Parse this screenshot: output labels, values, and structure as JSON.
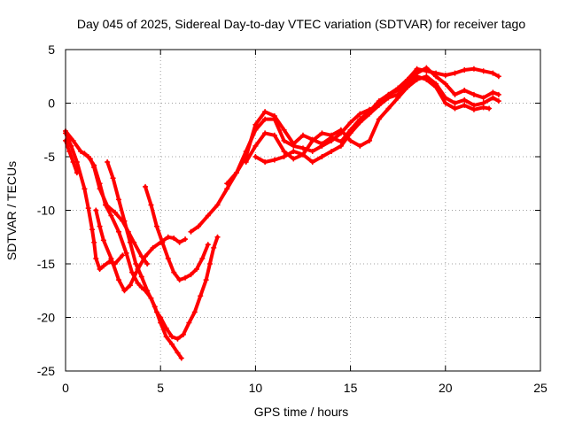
{
  "chart_data": {
    "type": "scatter",
    "title": "Day 045 of 2025, Sidereal Day-to-day VTEC variation (SDTVAR) for receiver tago",
    "xlabel": "GPS time / hours",
    "ylabel": "SDTVAR / TECUs",
    "xlim": [
      0,
      25
    ],
    "ylim": [
      -25,
      5
    ],
    "xticks": [
      0,
      5,
      10,
      15,
      20,
      25
    ],
    "yticks": [
      -25,
      -20,
      -15,
      -10,
      -5,
      0,
      5
    ],
    "xtick_labels": [
      "0",
      "5",
      "10",
      "15",
      "20",
      "25"
    ],
    "ytick_labels": [
      "-25",
      "-20",
      "-15",
      "-10",
      "-5",
      "0",
      "5"
    ],
    "grid": true,
    "marker": "+",
    "color": "#ff0000",
    "series": [
      {
        "name": "s1",
        "x": [
          0.0,
          0.3,
          0.6,
          1.0,
          1.2,
          1.4,
          1.5,
          1.6,
          1.8,
          2.0,
          2.3,
          2.6,
          3.0
        ],
        "y": [
          -2.8,
          -4.0,
          -5.5,
          -8.0,
          -9.8,
          -11.8,
          -13.0,
          -14.5,
          -15.5,
          -15.2,
          -14.8,
          -15.0,
          -14.2
        ]
      },
      {
        "name": "s2",
        "x": [
          0.0,
          0.2,
          0.4,
          0.6
        ],
        "y": [
          -3.5,
          -4.5,
          -5.5,
          -6.5
        ]
      },
      {
        "name": "s3",
        "x": [
          1.0,
          1.3,
          1.5,
          1.8,
          2.2,
          2.6,
          3.0,
          3.3,
          3.6,
          4.0,
          4.3
        ],
        "y": [
          -4.7,
          -5.2,
          -6.0,
          -8.0,
          -9.6,
          -10.2,
          -11.0,
          -12.0,
          -13.0,
          -14.3,
          -15.0
        ]
      },
      {
        "name": "s4",
        "x": [
          0.0,
          0.4,
          0.8,
          1.2,
          1.5,
          1.8,
          2.1,
          2.4,
          2.8,
          3.2,
          3.5,
          3.8,
          4.0,
          4.2,
          4.5,
          4.8,
          5.0,
          5.3,
          5.6,
          5.9,
          6.2,
          6.5,
          6.8,
          7.1,
          7.4,
          7.6,
          7.8,
          8.0
        ],
        "y": [
          -2.6,
          -3.5,
          -4.5,
          -5.0,
          -5.8,
          -7.5,
          -9.5,
          -10.5,
          -12.0,
          -14.0,
          -15.8,
          -16.8,
          -17.2,
          -17.5,
          -18.2,
          -19.5,
          -20.0,
          -21.0,
          -21.8,
          -22.0,
          -21.6,
          -20.5,
          -19.5,
          -18.0,
          -16.5,
          -15.0,
          -13.5,
          -12.5
        ]
      },
      {
        "name": "s5",
        "x": [
          1.6,
          1.8,
          2.0,
          2.4,
          2.8,
          3.1,
          3.4,
          3.8,
          4.2,
          4.6,
          5.0,
          5.4,
          5.7,
          6.0,
          6.3
        ],
        "y": [
          -10.0,
          -11.5,
          -12.8,
          -14.5,
          -16.5,
          -17.5,
          -17.0,
          -15.5,
          -14.3,
          -13.5,
          -13.0,
          -12.5,
          -12.6,
          -13.0,
          -12.7
        ]
      },
      {
        "name": "s6",
        "x": [
          2.2,
          2.5,
          2.8,
          3.1,
          3.4,
          3.7,
          4.0,
          4.3,
          4.7,
          5.0,
          5.3,
          5.6,
          5.9,
          6.1
        ],
        "y": [
          -5.5,
          -7.0,
          -9.0,
          -11.0,
          -13.0,
          -15.0,
          -16.2,
          -17.5,
          -19.0,
          -20.5,
          -21.8,
          -22.5,
          -23.3,
          -23.8
        ]
      },
      {
        "name": "s7",
        "x": [
          4.2,
          4.5,
          4.8,
          5.1,
          5.4,
          5.7,
          6.0,
          6.3,
          6.6,
          6.9,
          7.2,
          7.5
        ],
        "y": [
          -7.8,
          -9.5,
          -11.5,
          -13.0,
          -14.5,
          -15.8,
          -16.5,
          -16.3,
          -16.0,
          -15.5,
          -14.5,
          -13.2
        ]
      },
      {
        "name": "s8",
        "x": [
          6.6,
          7.0,
          7.5,
          8.0,
          8.5,
          9.0,
          9.5,
          10.0,
          10.5,
          11.0,
          11.5,
          12.0,
          12.5,
          13.0,
          13.5,
          14.0,
          14.5,
          15.0,
          15.5,
          16.0,
          16.5,
          17.0,
          17.5,
          18.0,
          18.5,
          19.0,
          19.5,
          20.0,
          20.5,
          21.0,
          21.5,
          22.0,
          22.5,
          22.8
        ],
        "y": [
          -12.0,
          -11.5,
          -10.5,
          -9.5,
          -8.0,
          -6.5,
          -4.5,
          -2.5,
          -1.5,
          -1.5,
          -3.5,
          -4.0,
          -4.2,
          -4.5,
          -4.0,
          -3.5,
          -2.8,
          -1.8,
          -1.0,
          -0.6,
          -0.2,
          0.8,
          1.4,
          2.2,
          3.2,
          3.0,
          2.8,
          2.6,
          2.8,
          3.1,
          3.2,
          3.0,
          2.8,
          2.5
        ]
      },
      {
        "name": "s9",
        "x": [
          8.5,
          9.0,
          9.5,
          10.0,
          10.5,
          11.0,
          11.5,
          12.0,
          12.5,
          13.0,
          13.5,
          14.0,
          14.5,
          15.0,
          15.5,
          16.0,
          16.5,
          17.0,
          17.5,
          18.0,
          18.5,
          19.0,
          19.5,
          20.0,
          20.5,
          21.0,
          21.5,
          22.0,
          22.5,
          22.8
        ],
        "y": [
          -7.5,
          -6.5,
          -5.0,
          -2.0,
          -0.8,
          -1.2,
          -2.5,
          -3.8,
          -3.0,
          -3.4,
          -3.8,
          -3.2,
          -3.6,
          -2.5,
          -1.5,
          -0.8,
          0.2,
          0.8,
          1.2,
          1.8,
          2.8,
          3.3,
          2.5,
          1.8,
          0.8,
          1.2,
          0.8,
          0.5,
          1.0,
          0.8
        ]
      },
      {
        "name": "s10",
        "x": [
          9.5,
          10.0,
          10.5,
          11.0,
          11.5,
          12.0,
          12.5,
          13.0,
          13.5,
          14.0,
          14.5,
          15.0,
          15.5,
          16.0,
          16.5,
          17.0,
          17.5,
          18.0,
          18.5,
          19.0,
          19.5,
          20.0,
          20.5,
          21.0,
          21.5,
          22.0,
          22.5,
          22.8
        ],
        "y": [
          -5.5,
          -4.0,
          -2.8,
          -3.0,
          -4.5,
          -5.2,
          -4.8,
          -3.5,
          -2.8,
          -3.0,
          -2.5,
          -3.5,
          -4.0,
          -3.5,
          -1.5,
          -0.5,
          0.5,
          1.5,
          2.2,
          2.5,
          1.8,
          0.5,
          0.0,
          0.3,
          -0.2,
          0.0,
          0.5,
          0.2
        ]
      },
      {
        "name": "s11",
        "x": [
          10.0,
          10.5,
          11.0,
          11.5,
          12.0,
          12.5,
          13.0,
          13.5,
          14.0,
          14.5,
          15.0,
          15.5,
          16.0,
          16.5,
          17.0,
          17.5,
          18.0,
          18.5,
          19.0,
          19.5,
          20.0,
          20.5,
          21.0,
          21.5,
          22.0,
          22.3
        ],
        "y": [
          -5.0,
          -5.5,
          -5.3,
          -5.0,
          -4.5,
          -4.8,
          -5.5,
          -5.0,
          -4.5,
          -4.0,
          -2.8,
          -1.8,
          -1.0,
          -0.2,
          0.5,
          0.8,
          1.5,
          2.5,
          2.2,
          1.5,
          0.0,
          -0.5,
          -0.2,
          -0.6,
          -0.4,
          -0.5
        ]
      }
    ]
  }
}
